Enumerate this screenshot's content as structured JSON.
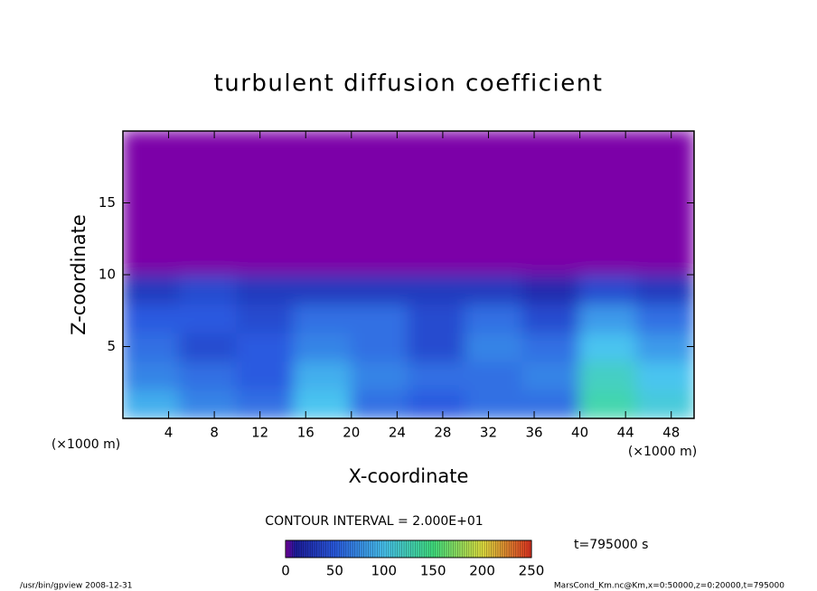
{
  "chart_data": {
    "type": "heatmap",
    "title": "turbulent diffusion coefficient",
    "x_label": "X-coordinate",
    "y_label": "Z-coordinate",
    "x_unit": "(×1000 m)",
    "y_unit": "(×1000 m)",
    "xlim": [
      0,
      50
    ],
    "ylim": [
      0,
      20
    ],
    "xticks": [
      4,
      8,
      12,
      16,
      20,
      24,
      28,
      32,
      36,
      40,
      44,
      48
    ],
    "yticks": [
      5,
      10,
      15
    ],
    "values": [
      [
        90,
        70,
        60,
        100,
        60,
        50,
        60,
        60,
        130,
        110
      ],
      [
        70,
        60,
        50,
        90,
        70,
        60,
        60,
        70,
        120,
        100
      ],
      [
        60,
        40,
        50,
        70,
        60,
        40,
        70,
        60,
        100,
        80
      ],
      [
        50,
        50,
        40,
        60,
        60,
        40,
        60,
        40,
        80,
        60
      ],
      [
        30,
        40,
        30,
        30,
        30,
        30,
        30,
        20,
        40,
        30
      ],
      [
        0,
        0,
        0,
        0,
        0,
        0,
        0,
        0,
        0,
        0
      ],
      [
        0,
        0,
        0,
        0,
        0,
        0,
        0,
        0,
        0,
        0
      ],
      [
        0,
        0,
        0,
        0,
        0,
        0,
        0,
        0,
        0,
        0
      ],
      [
        0,
        0,
        0,
        0,
        0,
        0,
        0,
        0,
        0,
        0
      ],
      [
        0,
        0,
        0,
        0,
        0,
        0,
        0,
        0,
        0,
        0
      ]
    ],
    "colorscale": [
      [
        0,
        "#7b00a8"
      ],
      [
        10,
        "#1c1c9c"
      ],
      [
        50,
        "#2a5ae0"
      ],
      [
        100,
        "#48c4f0"
      ],
      [
        150,
        "#40e080"
      ],
      [
        200,
        "#e0e040"
      ],
      [
        250,
        "#e03020"
      ]
    ],
    "clim": [
      0,
      250
    ],
    "cticks": [
      0,
      50,
      100,
      150,
      200,
      250
    ],
    "contour_interval": "CONTOUR INTERVAL = 2.000E+01",
    "time_label": "t=795000 s",
    "footer_left": "/usr/bin/gpview   2008-12-31",
    "footer_right": "MarsCond_Km.nc@Km,x=0:50000,z=0:20000,t=795000"
  }
}
